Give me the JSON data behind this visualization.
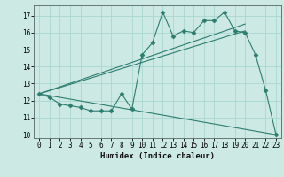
{
  "xlabel": "Humidex (Indice chaleur)",
  "bg_color": "#cce9e4",
  "grid_color": "#aad6d0",
  "line_color": "#2d7d6e",
  "xlim": [
    -0.5,
    23.5
  ],
  "ylim": [
    9.8,
    17.6
  ],
  "yticks": [
    10,
    11,
    12,
    13,
    14,
    15,
    16,
    17
  ],
  "xticks": [
    0,
    1,
    2,
    3,
    4,
    5,
    6,
    7,
    8,
    9,
    10,
    11,
    12,
    13,
    14,
    15,
    16,
    17,
    18,
    19,
    20,
    21,
    22,
    23
  ],
  "series_main": {
    "x": [
      0,
      1,
      2,
      3,
      4,
      5,
      6,
      7,
      8,
      9,
      10,
      11,
      12,
      13,
      14,
      15,
      16,
      17,
      18,
      19,
      20,
      21,
      22,
      23
    ],
    "y": [
      12.4,
      12.2,
      11.8,
      11.7,
      11.6,
      11.4,
      11.4,
      11.4,
      12.4,
      11.5,
      14.7,
      15.4,
      17.2,
      15.8,
      16.1,
      16.0,
      16.7,
      16.7,
      17.2,
      16.1,
      16.0,
      14.7,
      12.6,
      10.0
    ]
  },
  "series_trend1": {
    "x": [
      0,
      20
    ],
    "y": [
      12.4,
      16.1
    ]
  },
  "series_trend2": {
    "x": [
      0,
      20
    ],
    "y": [
      12.4,
      16.5
    ]
  },
  "series_lower": {
    "x": [
      0,
      23
    ],
    "y": [
      12.4,
      10.0
    ]
  }
}
